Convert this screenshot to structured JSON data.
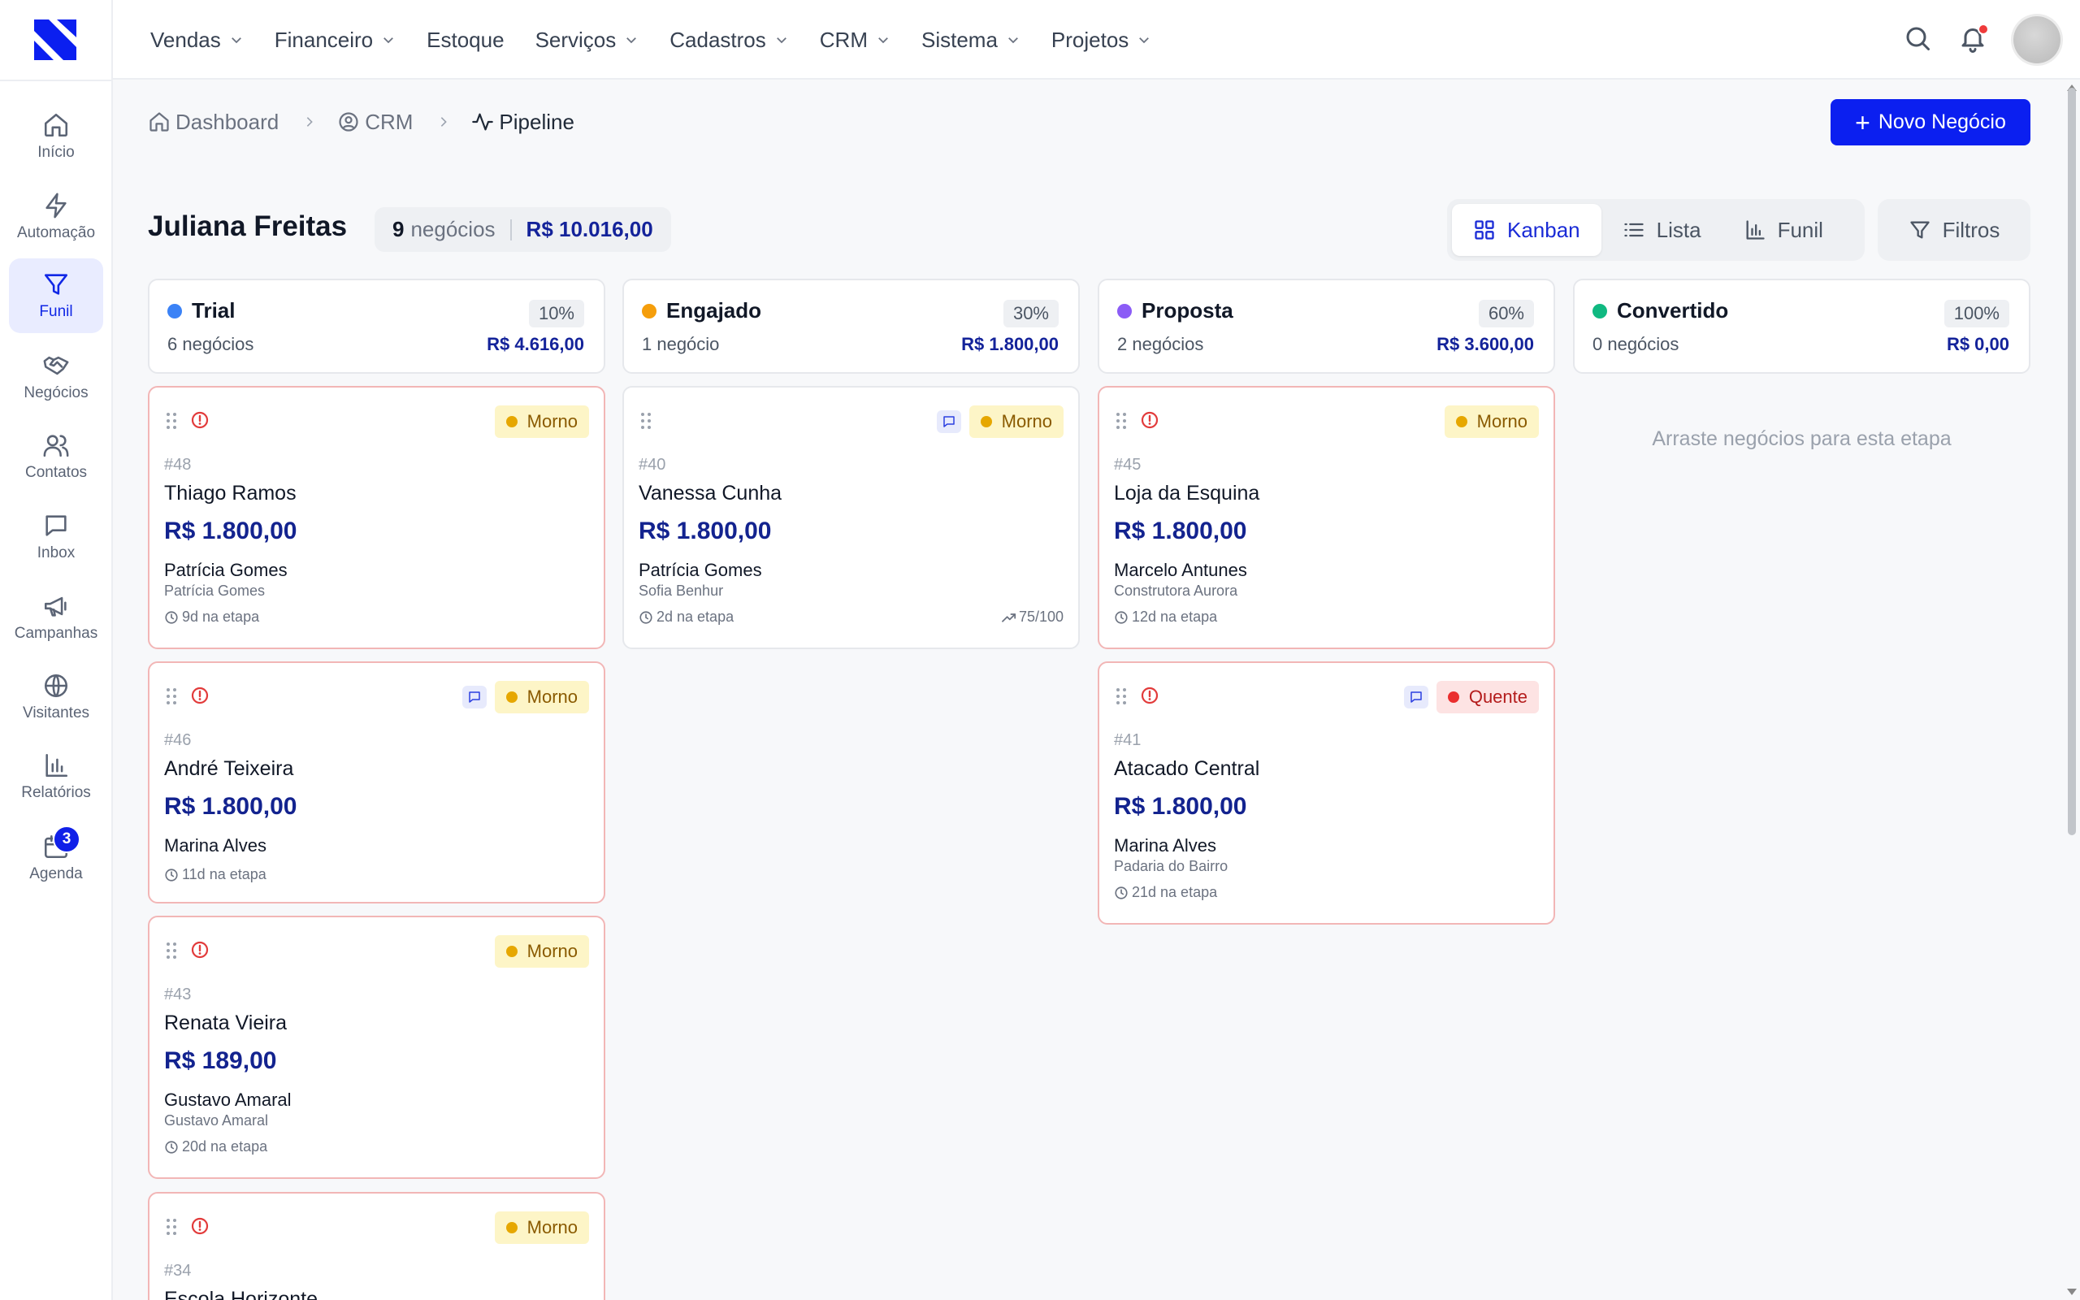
{
  "sidebar": {
    "items": [
      {
        "label": "Início",
        "icon": "home-icon"
      },
      {
        "label": "Automação",
        "icon": "lightning-icon"
      },
      {
        "label": "Funil",
        "icon": "funnel-icon",
        "active": true
      },
      {
        "label": "Negócios",
        "icon": "handshake-icon"
      },
      {
        "label": "Contatos",
        "icon": "users-icon"
      },
      {
        "label": "Inbox",
        "icon": "message-icon"
      },
      {
        "label": "Campanhas",
        "icon": "megaphone-icon"
      },
      {
        "label": "Visitantes",
        "icon": "globe-icon"
      },
      {
        "label": "Relatórios",
        "icon": "bar-chart-icon"
      },
      {
        "label": "Agenda",
        "icon": "calendar-icon",
        "badge": "3"
      }
    ]
  },
  "topbar": {
    "menu": [
      {
        "label": "Vendas",
        "dropdown": true
      },
      {
        "label": "Financeiro",
        "dropdown": true
      },
      {
        "label": "Estoque",
        "dropdown": false
      },
      {
        "label": "Serviços",
        "dropdown": true
      },
      {
        "label": "Cadastros",
        "dropdown": true
      },
      {
        "label": "CRM",
        "dropdown": true
      },
      {
        "label": "Sistema",
        "dropdown": true
      },
      {
        "label": "Projetos",
        "dropdown": true
      }
    ]
  },
  "breadcrumb": {
    "items": [
      {
        "label": "Dashboard",
        "icon": "home-icon"
      },
      {
        "label": "CRM",
        "icon": "user-circle-icon"
      },
      {
        "label": "Pipeline",
        "icon": "activity-icon"
      }
    ]
  },
  "actions": {
    "new_deal": "Novo Negócio"
  },
  "header": {
    "owner": "Juliana Freitas",
    "deal_count": "9",
    "deal_count_label": "negócios",
    "total": "R$ 10.016,00"
  },
  "views": {
    "kanban": "Kanban",
    "lista": "Lista",
    "funil": "Funil",
    "filters": "Filtros",
    "active": "kanban"
  },
  "columns": [
    {
      "title": "Trial",
      "color": "#3b82f6",
      "pct": "10%",
      "count": "6 negócios",
      "total": "R$ 4.616,00",
      "cards": [
        {
          "id": "#48",
          "name": "Thiago Ramos",
          "value": "R$ 1.800,00",
          "contact": "Patrícia Gomes",
          "company": "Patrícia Gomes",
          "time": "9d na etapa",
          "temp": "Morno",
          "hot": false,
          "alert": true,
          "chat": false,
          "score": ""
        },
        {
          "id": "#46",
          "name": "André Teixeira",
          "value": "R$ 1.800,00",
          "contact": "Marina Alves",
          "company": "",
          "time": "11d na etapa",
          "temp": "Morno",
          "hot": false,
          "alert": true,
          "chat": true,
          "score": ""
        },
        {
          "id": "#43",
          "name": "Renata Vieira",
          "value": "R$ 189,00",
          "contact": "Gustavo Amaral",
          "company": "Gustavo Amaral",
          "time": "20d na etapa",
          "temp": "Morno",
          "hot": false,
          "alert": true,
          "chat": false,
          "score": ""
        },
        {
          "id": "#34",
          "name": "Escola Horizonte",
          "value": "",
          "contact": "",
          "company": "",
          "time": "",
          "temp": "Morno",
          "hot": false,
          "alert": true,
          "chat": false,
          "score": ""
        }
      ]
    },
    {
      "title": "Engajado",
      "color": "#f59e0b",
      "pct": "30%",
      "count": "1 negócio",
      "total": "R$ 1.800,00",
      "cards": [
        {
          "id": "#40",
          "name": "Vanessa Cunha",
          "value": "R$ 1.800,00",
          "contact": "Patrícia Gomes",
          "company": "Sofia Benhur",
          "time": "2d na etapa",
          "temp": "Morno",
          "hot": false,
          "alert": false,
          "chat": true,
          "score": "75/100"
        }
      ]
    },
    {
      "title": "Proposta",
      "color": "#8b5cf6",
      "pct": "60%",
      "count": "2 negócios",
      "total": "R$ 3.600,00",
      "cards": [
        {
          "id": "#45",
          "name": "Loja da Esquina",
          "value": "R$ 1.800,00",
          "contact": "Marcelo Antunes",
          "company": "Construtora Aurora",
          "time": "12d na etapa",
          "temp": "Morno",
          "hot": false,
          "alert": true,
          "chat": false,
          "score": ""
        },
        {
          "id": "#41",
          "name": "Atacado Central",
          "value": "R$ 1.800,00",
          "contact": "Marina Alves",
          "company": "Padaria do Bairro",
          "time": "21d na etapa",
          "temp": "Quente",
          "hot": true,
          "alert": true,
          "chat": true,
          "score": ""
        }
      ]
    },
    {
      "title": "Convertido",
      "color": "#10b981",
      "pct": "100%",
      "count": "0 negócios",
      "total": "R$ 0,00",
      "empty": "Arraste negócios para esta etapa",
      "cards": []
    }
  ]
}
